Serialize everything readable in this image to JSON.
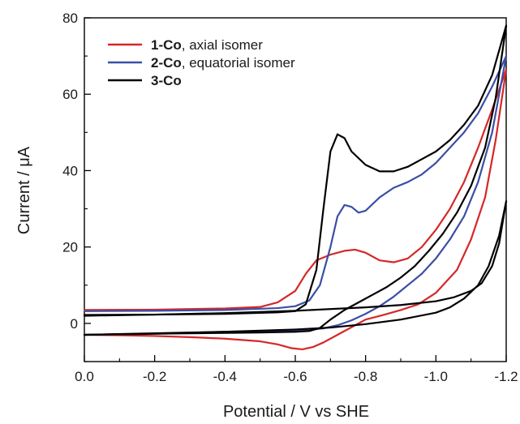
{
  "chart_data": {
    "type": "line",
    "xlabel": "Potential  /  V vs SHE",
    "ylabel_prefix": "Current  /  ",
    "ylabel_unit": "μA",
    "xlim": [
      0.0,
      -1.2
    ],
    "ylim": [
      -10,
      80
    ],
    "x_ticks": [
      0.0,
      -0.2,
      -0.4,
      -0.6,
      -0.8,
      -1.0,
      -1.2
    ],
    "x_tick_labels": [
      "0.0",
      "-0.2",
      "-0.4",
      "-0.6",
      "-0.8",
      "-1.0",
      "-1.2"
    ],
    "y_ticks": [
      0,
      20,
      40,
      60,
      80
    ],
    "y_tick_labels": [
      "0",
      "20",
      "40",
      "60",
      "80"
    ],
    "legend_position": "top-left",
    "series": [
      {
        "name_bold": "1-Co",
        "name_rest": ", axial isomer",
        "color": "#d62728",
        "forward": [
          [
            0.0,
            3.5
          ],
          [
            -0.2,
            3.6
          ],
          [
            -0.4,
            3.9
          ],
          [
            -0.5,
            4.3
          ],
          [
            -0.55,
            5.5
          ],
          [
            -0.6,
            8.5
          ],
          [
            -0.63,
            13
          ],
          [
            -0.66,
            16.5
          ],
          [
            -0.7,
            18
          ],
          [
            -0.74,
            19
          ],
          [
            -0.77,
            19.3
          ],
          [
            -0.8,
            18.5
          ],
          [
            -0.84,
            16.5
          ],
          [
            -0.88,
            16
          ],
          [
            -0.92,
            17
          ],
          [
            -0.96,
            20
          ],
          [
            -1.0,
            24.5
          ],
          [
            -1.04,
            30
          ],
          [
            -1.08,
            37
          ],
          [
            -1.12,
            46
          ],
          [
            -1.16,
            56
          ],
          [
            -1.2,
            66.5
          ]
        ],
        "reverse": [
          [
            -1.2,
            66.5
          ],
          [
            -1.17,
            48
          ],
          [
            -1.14,
            33
          ],
          [
            -1.1,
            22
          ],
          [
            -1.06,
            14
          ],
          [
            -1.0,
            8
          ],
          [
            -0.95,
            5
          ],
          [
            -0.9,
            3.5
          ],
          [
            -0.85,
            2.2
          ],
          [
            -0.8,
            1
          ],
          [
            -0.76,
            -1
          ],
          [
            -0.72,
            -3
          ],
          [
            -0.68,
            -5
          ],
          [
            -0.65,
            -6.2
          ],
          [
            -0.62,
            -6.8
          ],
          [
            -0.59,
            -6.5
          ],
          [
            -0.55,
            -5.5
          ],
          [
            -0.5,
            -4.7
          ],
          [
            -0.4,
            -4
          ],
          [
            -0.3,
            -3.6
          ],
          [
            -0.2,
            -3.3
          ],
          [
            -0.1,
            -3.1
          ],
          [
            0.0,
            -3.0
          ]
        ]
      },
      {
        "name_bold": "2-Co",
        "name_rest": ", equatorial isomer",
        "color": "#3a4fa5",
        "forward": [
          [
            0.0,
            3.2
          ],
          [
            -0.2,
            3.3
          ],
          [
            -0.4,
            3.5
          ],
          [
            -0.55,
            4
          ],
          [
            -0.6,
            4.5
          ],
          [
            -0.64,
            6
          ],
          [
            -0.67,
            10
          ],
          [
            -0.7,
            20
          ],
          [
            -0.72,
            28
          ],
          [
            -0.74,
            31
          ],
          [
            -0.76,
            30.5
          ],
          [
            -0.78,
            29
          ],
          [
            -0.8,
            29.5
          ],
          [
            -0.84,
            33
          ],
          [
            -0.88,
            35.5
          ],
          [
            -0.92,
            37
          ],
          [
            -0.96,
            39
          ],
          [
            -1.0,
            42
          ],
          [
            -1.04,
            46
          ],
          [
            -1.08,
            50
          ],
          [
            -1.12,
            55
          ],
          [
            -1.16,
            62
          ],
          [
            -1.2,
            70
          ]
        ],
        "reverse": [
          [
            -1.2,
            70
          ],
          [
            -1.16,
            50
          ],
          [
            -1.12,
            37
          ],
          [
            -1.08,
            28
          ],
          [
            -1.04,
            22
          ],
          [
            -1.0,
            17
          ],
          [
            -0.96,
            13
          ],
          [
            -0.92,
            10
          ],
          [
            -0.88,
            7
          ],
          [
            -0.84,
            4.5
          ],
          [
            -0.8,
            2.5
          ],
          [
            -0.76,
            0.8
          ],
          [
            -0.72,
            -0.5
          ],
          [
            -0.68,
            -1.3
          ],
          [
            -0.64,
            -1.7
          ],
          [
            -0.6,
            -1.9
          ],
          [
            -0.5,
            -2
          ],
          [
            -0.4,
            -2.2
          ],
          [
            -0.2,
            -2.7
          ],
          [
            0.0,
            -3.0
          ]
        ]
      },
      {
        "name_bold": "3-Co",
        "name_rest": "",
        "color": "#000000",
        "forward": [
          [
            0.0,
            2.2
          ],
          [
            -0.2,
            2.3
          ],
          [
            -0.4,
            2.5
          ],
          [
            -0.55,
            2.9
          ],
          [
            -0.6,
            3.2
          ],
          [
            -0.63,
            5
          ],
          [
            -0.66,
            14
          ],
          [
            -0.68,
            30
          ],
          [
            -0.7,
            45
          ],
          [
            -0.72,
            49.5
          ],
          [
            -0.74,
            48.5
          ],
          [
            -0.76,
            45
          ],
          [
            -0.8,
            41.5
          ],
          [
            -0.84,
            39.8
          ],
          [
            -0.88,
            39.8
          ],
          [
            -0.92,
            41
          ],
          [
            -0.96,
            43
          ],
          [
            -1.0,
            45
          ],
          [
            -1.04,
            48
          ],
          [
            -1.08,
            52
          ],
          [
            -1.12,
            57
          ],
          [
            -1.16,
            65
          ],
          [
            -1.2,
            78
          ]
        ],
        "reverse": [
          [
            -1.2,
            78
          ],
          [
            -1.17,
            59
          ],
          [
            -1.14,
            46
          ],
          [
            -1.1,
            36
          ],
          [
            -1.06,
            29
          ],
          [
            -1.02,
            23.5
          ],
          [
            -0.98,
            19
          ],
          [
            -0.94,
            15
          ],
          [
            -0.9,
            12
          ],
          [
            -0.86,
            9.5
          ],
          [
            -0.82,
            7.5
          ],
          [
            -0.78,
            5.5
          ],
          [
            -0.74,
            3.5
          ],
          [
            -0.7,
            1
          ],
          [
            -0.67,
            -1.2
          ],
          [
            -0.64,
            -2
          ],
          [
            -0.6,
            -2.2
          ],
          [
            -0.5,
            -2.4
          ],
          [
            -0.4,
            -2.5
          ],
          [
            -0.2,
            -2.7
          ],
          [
            0.0,
            -3.0
          ]
        ]
      },
      {
        "name_bold": "",
        "name_rest": "",
        "color": "#000000",
        "in_legend": false,
        "forward": [
          [
            0.0,
            2.0
          ],
          [
            -0.2,
            2.3
          ],
          [
            -0.4,
            2.7
          ],
          [
            -0.6,
            3.3
          ],
          [
            -0.8,
            4.2
          ],
          [
            -0.9,
            4.8
          ],
          [
            -1.0,
            5.8
          ],
          [
            -1.05,
            6.8
          ],
          [
            -1.1,
            8.5
          ],
          [
            -1.13,
            10.5
          ],
          [
            -1.16,
            15
          ],
          [
            -1.18,
            21
          ],
          [
            -1.2,
            32
          ]
        ],
        "reverse": [
          [
            -1.2,
            32
          ],
          [
            -1.18,
            23
          ],
          [
            -1.15,
            15
          ],
          [
            -1.12,
            10
          ],
          [
            -1.08,
            6.5
          ],
          [
            -1.04,
            4.2
          ],
          [
            -1.0,
            2.8
          ],
          [
            -0.9,
            1.0
          ],
          [
            -0.8,
            -0.2
          ],
          [
            -0.7,
            -1.1
          ],
          [
            -0.6,
            -1.6
          ],
          [
            -0.4,
            -2.2
          ],
          [
            -0.2,
            -2.6
          ],
          [
            0.0,
            -3.0
          ]
        ]
      }
    ]
  }
}
